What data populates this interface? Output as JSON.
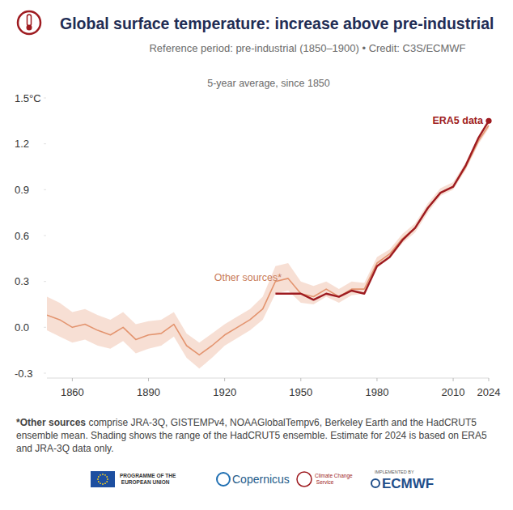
{
  "chart_data": {
    "type": "line",
    "title": "Global surface temperature: increase above pre-industrial",
    "subtitle": "Reference period: pre-industrial (1850–1900) • Credit: C3S/ECMWF",
    "inner_title": "5-year average, since 1850",
    "footnote_lead": "*Other sources",
    "footnote": " comprise JRA-3Q, GISTEMPv4, NOAAGlobalTempv6, Berkeley Earth and the HadCRUT5 ensemble mean. Shading shows the range of the HadCRUT5 ensemble. Estimate for 2024 is based on ERA5 and JRA-3Q data only.",
    "logos": [
      "PROGRAMME OF THE EUROPEAN UNION",
      "Copernicus",
      "Climate Change Service",
      "IMPLEMENTED BY",
      "ECMWF"
    ],
    "x": [
      1850,
      1855,
      1860,
      1865,
      1870,
      1875,
      1880,
      1885,
      1890,
      1895,
      1900,
      1905,
      1910,
      1915,
      1920,
      1925,
      1930,
      1935,
      1940,
      1945,
      1950,
      1955,
      1960,
      1965,
      1970,
      1975,
      1980,
      1985,
      1990,
      1995,
      2000,
      2005,
      2010,
      2015,
      2020,
      2024
    ],
    "xlim": [
      1850,
      2024
    ],
    "xticks": [
      1860,
      1890,
      1920,
      1950,
      1980,
      2010,
      2024
    ],
    "ylim": [
      -0.3,
      1.5
    ],
    "yticks": [
      -0.3,
      {
        "value": 0,
        "label": "0.0"
      },
      0.3,
      0.6,
      0.9,
      1.2,
      {
        "value": 1.5,
        "label": "1.5°C"
      }
    ],
    "grid": false,
    "series": [
      {
        "name": "Other sources*",
        "color": "#e3946f",
        "values": [
          0.08,
          0.05,
          0.0,
          0.02,
          -0.02,
          -0.05,
          0.0,
          -0.08,
          -0.05,
          -0.04,
          0.02,
          -0.12,
          -0.18,
          -0.12,
          -0.05,
          0.0,
          0.05,
          0.12,
          0.3,
          0.32,
          0.22,
          0.2,
          0.25,
          0.2,
          0.25,
          0.25,
          0.42,
          0.48,
          0.58,
          0.65,
          0.78,
          0.88,
          0.92,
          1.05,
          1.22,
          1.32
        ],
        "lower": [
          -0.02,
          -0.06,
          -0.1,
          -0.08,
          -0.12,
          -0.14,
          -0.09,
          -0.17,
          -0.14,
          -0.12,
          -0.06,
          -0.2,
          -0.27,
          -0.2,
          -0.12,
          -0.07,
          -0.02,
          0.05,
          0.22,
          0.24,
          0.16,
          0.15,
          0.2,
          0.16,
          0.21,
          0.22,
          0.39,
          0.45,
          0.55,
          0.62,
          0.75,
          0.86,
          0.9,
          1.03,
          1.2,
          1.3
        ],
        "upper": [
          0.2,
          0.16,
          0.1,
          0.12,
          0.08,
          0.05,
          0.1,
          0.02,
          0.04,
          0.05,
          0.1,
          -0.04,
          -0.1,
          -0.04,
          0.02,
          0.07,
          0.12,
          0.2,
          0.4,
          0.42,
          0.3,
          0.27,
          0.3,
          0.25,
          0.3,
          0.29,
          0.46,
          0.51,
          0.61,
          0.68,
          0.81,
          0.91,
          0.95,
          1.08,
          1.25,
          1.34
        ]
      },
      {
        "name": "ERA5 data",
        "color": "#9e1b20",
        "values": [
          null,
          null,
          null,
          null,
          null,
          null,
          null,
          null,
          null,
          null,
          null,
          null,
          null,
          null,
          null,
          null,
          null,
          null,
          0.22,
          0.22,
          0.22,
          0.18,
          0.22,
          0.2,
          0.24,
          0.22,
          0.4,
          0.46,
          0.57,
          0.65,
          0.78,
          0.88,
          0.92,
          1.06,
          1.24,
          1.35
        ]
      }
    ]
  }
}
